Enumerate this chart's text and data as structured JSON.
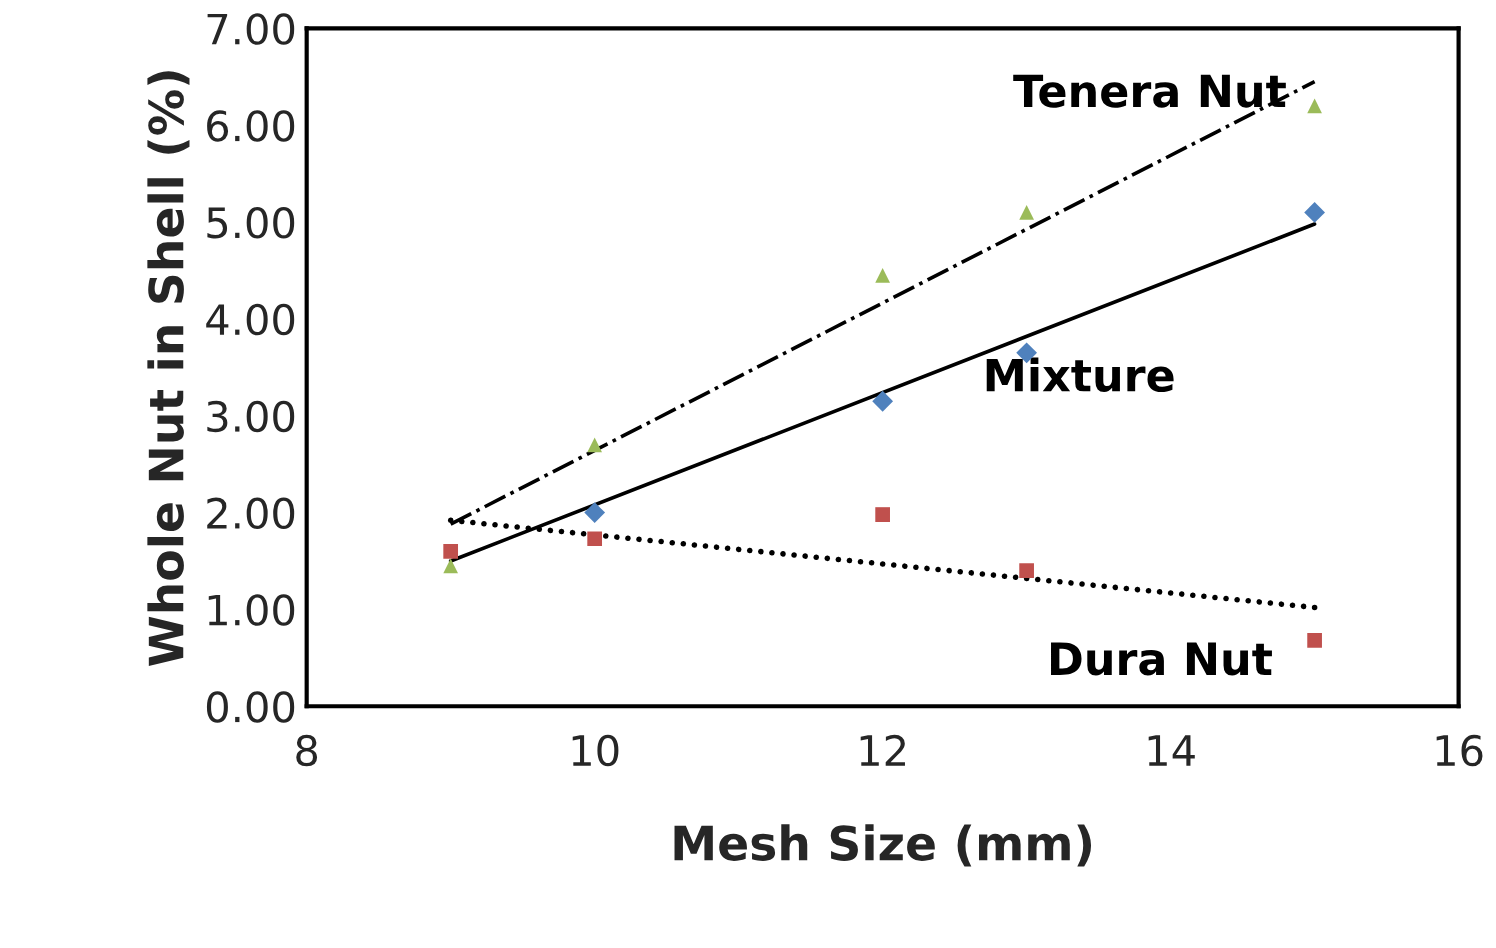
{
  "chart_data": {
    "type": "scatter",
    "xlabel": "Mesh Size (mm)",
    "ylabel": "Whole Nut in Shell (%)",
    "xlim": [
      8,
      16
    ],
    "xticks": [
      8,
      10,
      12,
      14,
      16
    ],
    "ylim": [
      0,
      7
    ],
    "yticks": [
      {
        "value": 0,
        "label": "0.00"
      },
      {
        "value": 1,
        "label": "1.00"
      },
      {
        "value": 2,
        "label": "2.00"
      },
      {
        "value": 3,
        "label": "3.00"
      },
      {
        "value": 4,
        "label": "4.00"
      },
      {
        "value": 5,
        "label": "5.00"
      },
      {
        "value": 6,
        "label": "6.00"
      },
      {
        "value": 7,
        "label": "7.00"
      }
    ],
    "grid": false,
    "legend": false,
    "series": [
      {
        "name": "Tenera Nut",
        "color": "#9bbb59",
        "marker": "triangle",
        "x": [
          9,
          10,
          12,
          13,
          15
        ],
        "values": [
          1.45,
          2.7,
          4.45,
          5.1,
          6.2
        ]
      },
      {
        "name": "Mixture",
        "color": "#4f81bd",
        "marker": "diamond",
        "x": [
          10,
          12,
          13,
          15
        ],
        "values": [
          2.0,
          3.15,
          3.65,
          5.1
        ]
      },
      {
        "name": "Dura Nut",
        "color": "#c0504d",
        "marker": "square",
        "x": [
          9,
          10,
          12,
          13,
          15
        ],
        "values": [
          1.6,
          1.73,
          1.98,
          1.4,
          0.68
        ]
      },
      {
        "type": "line",
        "color": "#000000",
        "line_style": "dashdot",
        "x": [
          9,
          15
        ],
        "values": [
          1.88,
          6.45
        ]
      },
      {
        "type": "line",
        "color": "#000000",
        "line_style": "solid",
        "x": [
          9,
          15
        ],
        "values": [
          1.5,
          4.98
        ]
      },
      {
        "type": "line",
        "color": "#000000",
        "line_style": "dotted",
        "x": [
          9,
          15
        ],
        "values": [
          1.92,
          1.02
        ]
      }
    ]
  }
}
